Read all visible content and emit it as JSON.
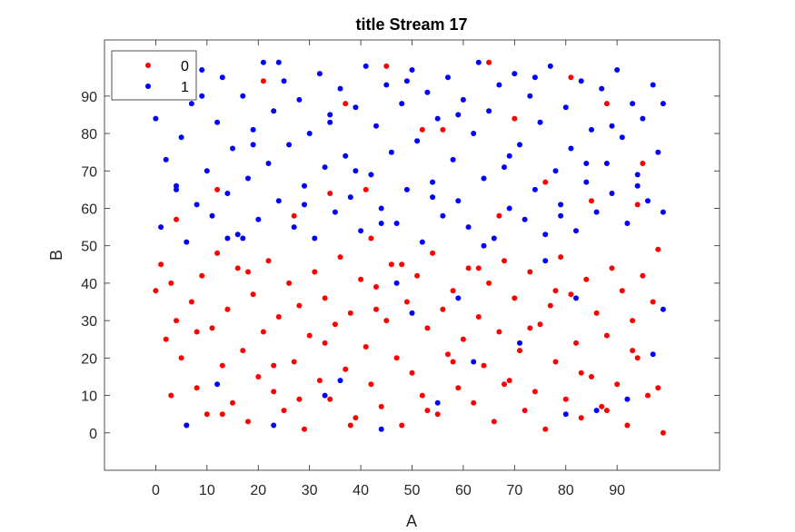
{
  "chart_data": {
    "type": "scatter",
    "title": "title Stream 17",
    "xlabel": "A",
    "ylabel": "B",
    "xlim": [
      -10,
      110
    ],
    "ylim": [
      -10,
      105
    ],
    "xticks": [
      0,
      10,
      20,
      30,
      40,
      50,
      60,
      70,
      80,
      90
    ],
    "yticks": [
      0,
      10,
      20,
      30,
      40,
      50,
      60,
      70,
      80,
      90
    ],
    "grid": false,
    "legend_position": "top-left",
    "series": [
      {
        "name": "0",
        "color": "#ff0000",
        "points": [
          [
            0,
            38
          ],
          [
            1,
            45
          ],
          [
            2,
            25
          ],
          [
            3,
            10
          ],
          [
            4,
            30
          ],
          [
            5,
            20
          ],
          [
            6,
            2
          ],
          [
            7,
            35
          ],
          [
            8,
            12
          ],
          [
            9,
            42
          ],
          [
            10,
            5
          ],
          [
            11,
            28
          ],
          [
            12,
            48
          ],
          [
            13,
            18
          ],
          [
            14,
            33
          ],
          [
            15,
            8
          ],
          [
            16,
            44
          ],
          [
            17,
            22
          ],
          [
            18,
            3
          ],
          [
            19,
            37
          ],
          [
            20,
            15
          ],
          [
            21,
            27
          ],
          [
            22,
            46
          ],
          [
            23,
            11
          ],
          [
            24,
            31
          ],
          [
            25,
            6
          ],
          [
            26,
            40
          ],
          [
            27,
            19
          ],
          [
            28,
            34
          ],
          [
            29,
            1
          ],
          [
            30,
            26
          ],
          [
            31,
            43
          ],
          [
            32,
            14
          ],
          [
            33,
            36
          ],
          [
            34,
            9
          ],
          [
            35,
            29
          ],
          [
            36,
            47
          ],
          [
            37,
            17
          ],
          [
            38,
            32
          ],
          [
            39,
            4
          ],
          [
            40,
            41
          ],
          [
            41,
            23
          ],
          [
            42,
            13
          ],
          [
            43,
            39
          ],
          [
            44,
            7
          ],
          [
            45,
            30
          ],
          [
            46,
            45
          ],
          [
            47,
            20
          ],
          [
            48,
            2
          ],
          [
            49,
            35
          ],
          [
            50,
            16
          ],
          [
            51,
            42
          ],
          [
            52,
            10
          ],
          [
            53,
            28
          ],
          [
            54,
            48
          ],
          [
            55,
            5
          ],
          [
            56,
            33
          ],
          [
            57,
            21
          ],
          [
            58,
            38
          ],
          [
            59,
            12
          ],
          [
            60,
            25
          ],
          [
            61,
            44
          ],
          [
            62,
            8
          ],
          [
            63,
            31
          ],
          [
            64,
            18
          ],
          [
            65,
            40
          ],
          [
            66,
            3
          ],
          [
            67,
            27
          ],
          [
            68,
            46
          ],
          [
            69,
            14
          ],
          [
            70,
            36
          ],
          [
            71,
            22
          ],
          [
            72,
            6
          ],
          [
            73,
            43
          ],
          [
            74,
            11
          ],
          [
            75,
            29
          ],
          [
            76,
            1
          ],
          [
            77,
            34
          ],
          [
            78,
            19
          ],
          [
            79,
            47
          ],
          [
            80,
            9
          ],
          [
            81,
            37
          ],
          [
            82,
            24
          ],
          [
            83,
            4
          ],
          [
            84,
            41
          ],
          [
            85,
            15
          ],
          [
            86,
            32
          ],
          [
            87,
            7
          ],
          [
            88,
            26
          ],
          [
            89,
            44
          ],
          [
            90,
            13
          ],
          [
            91,
            38
          ],
          [
            92,
            2
          ],
          [
            93,
            30
          ],
          [
            94,
            20
          ],
          [
            95,
            42
          ],
          [
            96,
            10
          ],
          [
            97,
            35
          ],
          [
            98,
            49
          ],
          [
            99,
            0
          ],
          [
            3,
            40
          ],
          [
            8,
            27
          ],
          [
            13,
            5
          ],
          [
            18,
            43
          ],
          [
            23,
            18
          ],
          [
            28,
            9
          ],
          [
            33,
            24
          ],
          [
            38,
            2
          ],
          [
            43,
            33
          ],
          [
            48,
            45
          ],
          [
            53,
            6
          ],
          [
            58,
            19
          ],
          [
            63,
            44
          ],
          [
            68,
            13
          ],
          [
            73,
            28
          ],
          [
            78,
            38
          ],
          [
            83,
            16
          ],
          [
            88,
            6
          ],
          [
            93,
            22
          ],
          [
            98,
            12
          ],
          [
            45,
            98
          ],
          [
            65,
            99
          ],
          [
            37,
            88
          ],
          [
            21,
            94
          ],
          [
            56,
            81
          ],
          [
            81,
            95
          ],
          [
            88,
            88
          ],
          [
            12,
            65
          ],
          [
            34,
            64
          ],
          [
            42,
            52
          ],
          [
            4,
            57
          ],
          [
            70,
            84
          ],
          [
            95,
            72
          ],
          [
            76,
            67
          ],
          [
            52,
            81
          ],
          [
            67,
            58
          ],
          [
            27,
            58
          ],
          [
            85,
            62
          ],
          [
            94,
            61
          ],
          [
            41,
            65
          ]
        ]
      },
      {
        "name": "1",
        "color": "#0000ff",
        "points": [
          [
            0,
            84
          ],
          [
            1,
            55
          ],
          [
            2,
            73
          ],
          [
            3,
            92
          ],
          [
            4,
            66
          ],
          [
            5,
            79
          ],
          [
            6,
            51
          ],
          [
            7,
            88
          ],
          [
            8,
            61
          ],
          [
            9,
            97
          ],
          [
            10,
            70
          ],
          [
            11,
            58
          ],
          [
            12,
            83
          ],
          [
            13,
            95
          ],
          [
            14,
            64
          ],
          [
            15,
            76
          ],
          [
            16,
            53
          ],
          [
            17,
            90
          ],
          [
            18,
            68
          ],
          [
            19,
            81
          ],
          [
            20,
            57
          ],
          [
            21,
            99
          ],
          [
            22,
            72
          ],
          [
            23,
            86
          ],
          [
            24,
            62
          ],
          [
            25,
            94
          ],
          [
            26,
            77
          ],
          [
            27,
            55
          ],
          [
            28,
            89
          ],
          [
            29,
            66
          ],
          [
            30,
            80
          ],
          [
            31,
            52
          ],
          [
            32,
            96
          ],
          [
            33,
            71
          ],
          [
            34,
            85
          ],
          [
            35,
            59
          ],
          [
            36,
            92
          ],
          [
            37,
            74
          ],
          [
            38,
            63
          ],
          [
            39,
            87
          ],
          [
            40,
            54
          ],
          [
            41,
            98
          ],
          [
            42,
            69
          ],
          [
            43,
            82
          ],
          [
            44,
            60
          ],
          [
            45,
            93
          ],
          [
            46,
            75
          ],
          [
            47,
            56
          ],
          [
            48,
            88
          ],
          [
            49,
            65
          ],
          [
            50,
            97
          ],
          [
            51,
            78
          ],
          [
            52,
            51
          ],
          [
            53,
            91
          ],
          [
            54,
            67
          ],
          [
            55,
            84
          ],
          [
            56,
            58
          ],
          [
            57,
            95
          ],
          [
            58,
            73
          ],
          [
            59,
            62
          ],
          [
            60,
            89
          ],
          [
            61,
            55
          ],
          [
            62,
            80
          ],
          [
            63,
            99
          ],
          [
            64,
            68
          ],
          [
            65,
            86
          ],
          [
            66,
            52
          ],
          [
            67,
            93
          ],
          [
            68,
            71
          ],
          [
            69,
            60
          ],
          [
            70,
            96
          ],
          [
            71,
            77
          ],
          [
            72,
            57
          ],
          [
            73,
            90
          ],
          [
            74,
            65
          ],
          [
            75,
            83
          ],
          [
            76,
            53
          ],
          [
            77,
            98
          ],
          [
            78,
            70
          ],
          [
            79,
            61
          ],
          [
            80,
            87
          ],
          [
            81,
            76
          ],
          [
            82,
            54
          ],
          [
            83,
            94
          ],
          [
            84,
            67
          ],
          [
            85,
            81
          ],
          [
            86,
            59
          ],
          [
            87,
            92
          ],
          [
            88,
            72
          ],
          [
            89,
            64
          ],
          [
            90,
            97
          ],
          [
            91,
            79
          ],
          [
            92,
            56
          ],
          [
            93,
            88
          ],
          [
            94,
            69
          ],
          [
            95,
            84
          ],
          [
            96,
            62
          ],
          [
            97,
            93
          ],
          [
            98,
            75
          ],
          [
            99,
            59
          ],
          [
            4,
            65
          ],
          [
            9,
            90
          ],
          [
            14,
            52
          ],
          [
            19,
            77
          ],
          [
            24,
            99
          ],
          [
            29,
            61
          ],
          [
            34,
            83
          ],
          [
            39,
            70
          ],
          [
            44,
            56
          ],
          [
            49,
            94
          ],
          [
            54,
            63
          ],
          [
            59,
            85
          ],
          [
            64,
            50
          ],
          [
            69,
            74
          ],
          [
            74,
            95
          ],
          [
            79,
            58
          ],
          [
            84,
            72
          ],
          [
            89,
            82
          ],
          [
            94,
            66
          ],
          [
            99,
            88
          ],
          [
            6,
            2
          ],
          [
            12,
            13
          ],
          [
            23,
            2
          ],
          [
            33,
            10
          ],
          [
            44,
            1
          ],
          [
            50,
            32
          ],
          [
            55,
            8
          ],
          [
            62,
            19
          ],
          [
            71,
            24
          ],
          [
            80,
            5
          ],
          [
            86,
            6
          ],
          [
            92,
            9
          ],
          [
            97,
            21
          ],
          [
            99,
            33
          ],
          [
            17,
            52
          ],
          [
            36,
            14
          ],
          [
            59,
            36
          ],
          [
            76,
            46
          ],
          [
            82,
            36
          ],
          [
            47,
            40
          ]
        ]
      }
    ]
  }
}
